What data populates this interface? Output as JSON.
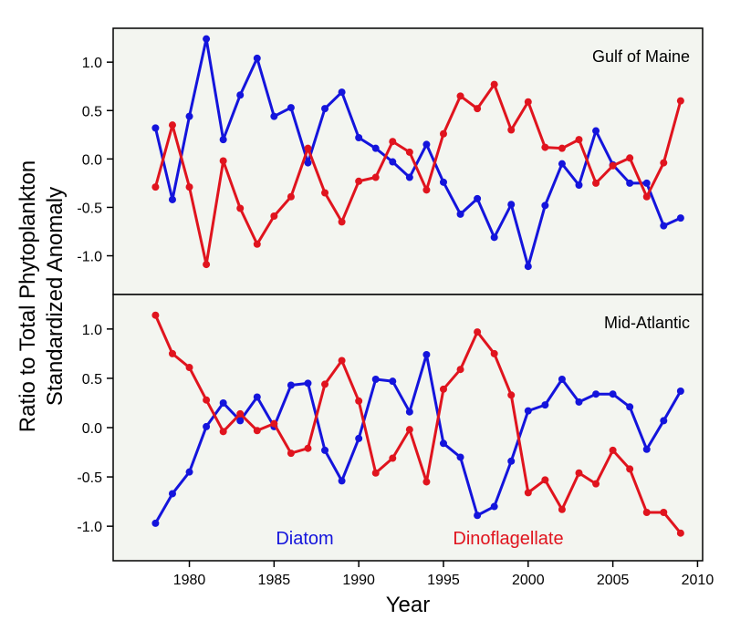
{
  "chart_data": {
    "type": "line",
    "ylabel_line1": "Ratio to Total Phytoplankton",
    "ylabel_line2": "Standardized Anomaly",
    "xlabel": "Year",
    "xlim": [
      1975.5,
      2010.3
    ],
    "xticks": [
      1980,
      1985,
      1990,
      1995,
      2000,
      2005,
      2010
    ],
    "yticks": [
      -1.0,
      -0.5,
      0.0,
      0.5,
      1.0
    ],
    "ytick_labels": [
      "-1.0",
      "-0.5",
      "0.0",
      "0.5",
      "1.0"
    ],
    "background": "#f3f5f0",
    "legend_labels": [
      {
        "text": "Diatom",
        "color": "#1414dc"
      },
      {
        "text": "Dinoflagellate",
        "color": "#e0141e"
      }
    ],
    "panels": [
      {
        "title": "Gulf of Maine",
        "ylim": [
          -1.4,
          1.35
        ],
        "x": [
          1978,
          1979,
          1980,
          1981,
          1982,
          1983,
          1984,
          1985,
          1986,
          1987,
          1988,
          1989,
          1990,
          1991,
          1992,
          1993,
          1994,
          1995,
          1996,
          1997,
          1998,
          1999,
          2000,
          2001,
          2002,
          2003,
          2004,
          2005,
          2006,
          2007,
          2008,
          2009
        ],
        "series": [
          {
            "key": "diatom",
            "color": "#1414dc",
            "values": [
              0.32,
              -0.42,
              0.44,
              1.24,
              0.2,
              0.66,
              1.04,
              0.44,
              0.53,
              -0.04,
              0.52,
              0.69,
              0.22,
              0.11,
              -0.03,
              -0.19,
              0.15,
              -0.24,
              -0.57,
              -0.41,
              -0.81,
              -0.47,
              -1.11,
              -0.48,
              -0.05,
              -0.27,
              0.29,
              -0.06,
              -0.25,
              -0.25,
              -0.69,
              -0.61
            ]
          },
          {
            "key": "dinoflagellate",
            "color": "#e0141e",
            "values": [
              -0.29,
              0.35,
              -0.29,
              -1.09,
              -0.02,
              -0.51,
              -0.88,
              -0.59,
              -0.39,
              0.11,
              -0.35,
              -0.65,
              -0.23,
              -0.19,
              0.18,
              0.07,
              -0.32,
              0.26,
              0.65,
              0.52,
              0.77,
              0.3,
              0.59,
              0.12,
              0.11,
              0.2,
              -0.25,
              -0.07,
              0.01,
              -0.39,
              -0.04,
              0.6
            ]
          }
        ]
      },
      {
        "title": "Mid-Atlantic",
        "ylim": [
          -1.35,
          1.35
        ],
        "x": [
          1978,
          1979,
          1980,
          1981,
          1982,
          1983,
          1984,
          1985,
          1986,
          1987,
          1988,
          1989,
          1990,
          1991,
          1992,
          1993,
          1994,
          1995,
          1996,
          1997,
          1998,
          1999,
          2000,
          2001,
          2002,
          2003,
          2004,
          2005,
          2006,
          2007,
          2008,
          2009
        ],
        "series": [
          {
            "key": "diatom",
            "color": "#1414dc",
            "values": [
              -0.97,
              -0.67,
              -0.45,
              0.01,
              0.25,
              0.07,
              0.31,
              0.01,
              0.43,
              0.45,
              -0.23,
              -0.54,
              -0.11,
              0.49,
              0.47,
              0.16,
              0.74,
              -0.16,
              -0.3,
              -0.89,
              -0.8,
              -0.34,
              0.17,
              0.23,
              0.49,
              0.26,
              0.34,
              0.34,
              0.21,
              -0.22,
              0.07,
              0.37
            ]
          },
          {
            "key": "dinoflagellate",
            "color": "#e0141e",
            "values": [
              1.14,
              0.75,
              0.61,
              0.28,
              -0.04,
              0.14,
              -0.03,
              0.04,
              -0.26,
              -0.21,
              0.44,
              0.68,
              0.27,
              -0.46,
              -0.31,
              -0.02,
              -0.55,
              0.39,
              0.59,
              0.97,
              0.75,
              0.33,
              -0.66,
              -0.53,
              -0.83,
              -0.46,
              -0.57,
              -0.23,
              -0.42,
              -0.86,
              -0.86,
              -1.07
            ]
          }
        ]
      }
    ]
  }
}
